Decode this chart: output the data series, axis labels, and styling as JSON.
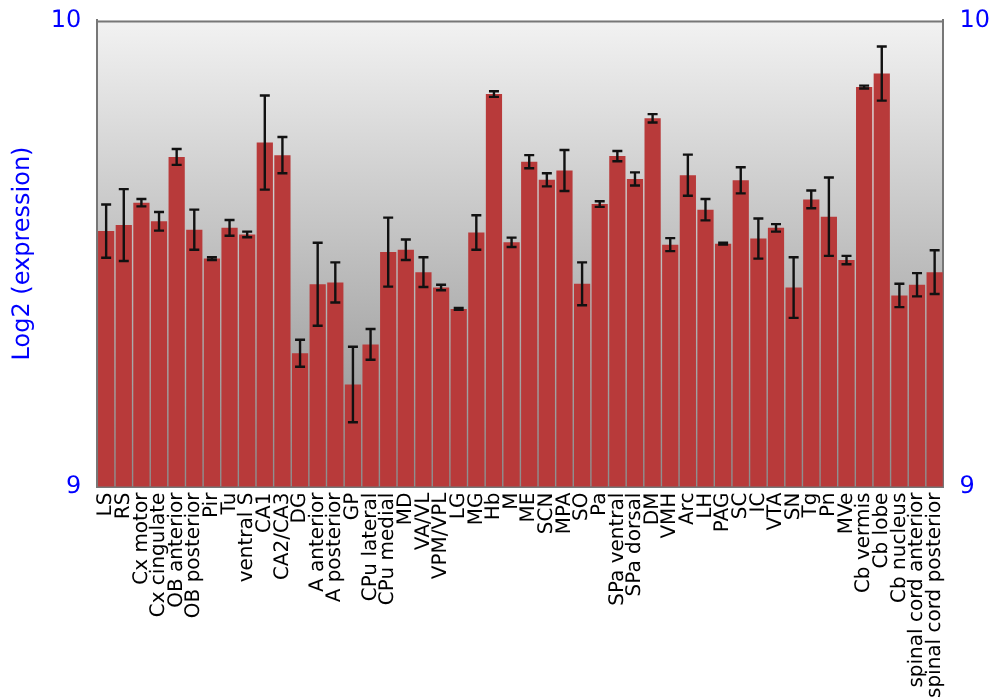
{
  "chart_data": {
    "type": "bar",
    "ylabel": "Log2 (expression)",
    "categories": [
      "LS",
      "RS",
      "Cx motor",
      "Cx cingulate",
      "OB anterior",
      "OB posterior",
      "Pir",
      "Tu",
      "ventral S",
      "CA1",
      "CA2/CA3",
      "DG",
      "A anterior",
      "A posterior",
      "GP",
      "CPu lateral",
      "CPu medial",
      "MD",
      "VA/VL",
      "VPM/VPL",
      "LG",
      "MG",
      "Hb",
      "M",
      "ME",
      "SCN",
      "MPA",
      "SO",
      "Pa",
      "SPa ventral",
      "SPa dorsal",
      "DM",
      "VMH",
      "Arc",
      "LH",
      "PAG",
      "SC",
      "IC",
      "VTA",
      "SN",
      "Tg",
      "Pn",
      "MVe",
      "Cb vermis",
      "Cb lobe",
      "Cb nucleus",
      "spinal cord anterior",
      "spinal cord posterior"
    ],
    "values": [
      9.548,
      9.561,
      9.609,
      9.569,
      9.707,
      9.551,
      9.489,
      9.555,
      9.541,
      9.738,
      9.711,
      9.286,
      9.434,
      9.438,
      9.219,
      9.305,
      9.503,
      9.508,
      9.46,
      9.427,
      9.381,
      9.545,
      9.842,
      9.524,
      9.697,
      9.658,
      9.678,
      9.435,
      9.606,
      9.709,
      9.66,
      9.79,
      9.519,
      9.668,
      9.594,
      9.521,
      9.657,
      9.532,
      9.555,
      9.427,
      9.616,
      9.579,
      9.486,
      9.857,
      9.886,
      9.41,
      9.433,
      9.46
    ],
    "errors": [
      0.057,
      0.077,
      0.008,
      0.02,
      0.017,
      0.043,
      0.003,
      0.017,
      0.006,
      0.101,
      0.039,
      0.029,
      0.089,
      0.043,
      0.081,
      0.033,
      0.074,
      0.022,
      0.032,
      0.006,
      0.002,
      0.037,
      0.006,
      0.01,
      0.014,
      0.014,
      0.044,
      0.046,
      0.006,
      0.011,
      0.014,
      0.009,
      0.014,
      0.044,
      0.023,
      0.002,
      0.028,
      0.043,
      0.008,
      0.065,
      0.019,
      0.084,
      0.009,
      0.003,
      0.058,
      0.025,
      0.025,
      0.047
    ],
    "color": "#b83a3a",
    "ylim": [
      9,
      10
    ],
    "yticks": [
      9,
      10
    ],
    "y2lim": [
      9,
      10
    ],
    "y2ticks": [
      9,
      10
    ],
    "grid": false,
    "legend": false
  }
}
